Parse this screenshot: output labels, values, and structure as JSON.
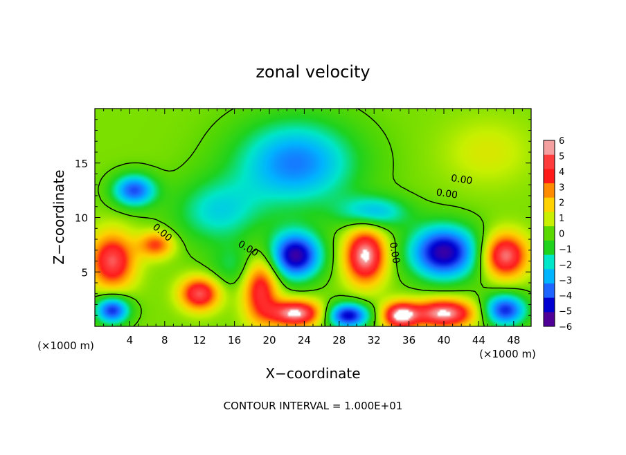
{
  "chart_data": {
    "type": "heatmap",
    "title": "zonal velocity",
    "xlabel": "X−coordinate",
    "ylabel": "Z−coordinate",
    "x_unit_label": "(×1000 m)",
    "y_unit_label": "(×1000 m)",
    "footer": "CONTOUR INTERVAL = 1.000E+01",
    "xlim": [
      0,
      50
    ],
    "ylim": [
      0,
      20
    ],
    "x_ticks": [
      4,
      8,
      12,
      16,
      20,
      24,
      28,
      32,
      36,
      40,
      44,
      48
    ],
    "x_tick_labels": [
      "4",
      "8",
      "12",
      "16",
      "20",
      "24",
      "28",
      "32",
      "36",
      "40",
      "44",
      "48"
    ],
    "y_ticks": [
      5,
      10,
      15
    ],
    "y_tick_labels": [
      "5",
      "10",
      "15"
    ],
    "colorbar": {
      "range": [
        -6,
        6
      ],
      "labels": [
        "6",
        "5",
        "4",
        "3",
        "2",
        "1",
        "0",
        "−1",
        "−2",
        "−3",
        "−4",
        "−5",
        "−6"
      ],
      "colors": [
        "#f4a0a0",
        "#ff3c3c",
        "#ff1a1a",
        "#ff8c00",
        "#ffd200",
        "#c8f000",
        "#5ad800",
        "#1ed21e",
        "#00e6c8",
        "#00b4ff",
        "#1e64ff",
        "#0000d0",
        "#500096"
      ]
    },
    "contour_labels": [
      {
        "text": "0.00",
        "x": 7.5,
        "y": 8.4
      },
      {
        "text": "0.00",
        "x": 17.4,
        "y": 6.9
      },
      {
        "text": "0.00",
        "x": 42.0,
        "y": 13.2
      },
      {
        "text": "0.00",
        "x": 40.3,
        "y": 11.9
      },
      {
        "text": "0.00",
        "x": 34.0,
        "y": 6.7
      }
    ],
    "field_blobs": [
      {
        "x": 23,
        "y": 15,
        "sx": 7,
        "sy": 4,
        "v": -4.0
      },
      {
        "x": 4.5,
        "y": 12.5,
        "sx": 2.5,
        "sy": 1.5,
        "v": -4.5
      },
      {
        "x": 14,
        "y": 10.5,
        "sx": 5,
        "sy": 3,
        "v": -2.5
      },
      {
        "x": 32,
        "y": 10.5,
        "sx": 4,
        "sy": 1.5,
        "v": -3.0
      },
      {
        "x": 23,
        "y": 6.5,
        "sx": 3,
        "sy": 2.2,
        "v": -6.0
      },
      {
        "x": 31,
        "y": 6.5,
        "sx": 2.3,
        "sy": 2.5,
        "v": 6.0
      },
      {
        "x": 40,
        "y": 6.8,
        "sx": 4,
        "sy": 2.5,
        "v": -6.0
      },
      {
        "x": 47,
        "y": 6.5,
        "sx": 2.5,
        "sy": 2,
        "v": 5.5
      },
      {
        "x": 2,
        "y": 6.0,
        "sx": 2.5,
        "sy": 2.5,
        "v": 5.0
      },
      {
        "x": 7,
        "y": 7.5,
        "sx": 2,
        "sy": 1.2,
        "v": 3.5
      },
      {
        "x": 12,
        "y": 3,
        "sx": 2.2,
        "sy": 1.5,
        "v": 5.0
      },
      {
        "x": 19,
        "y": 3.5,
        "sx": 2,
        "sy": 3,
        "v": 4.5
      },
      {
        "x": 23,
        "y": 1.2,
        "sx": 3,
        "sy": 1.2,
        "v": 6.0
      },
      {
        "x": 29,
        "y": 1.0,
        "sx": 2.5,
        "sy": 1.2,
        "v": -5.5
      },
      {
        "x": 35,
        "y": 1.0,
        "sx": 2,
        "sy": 1.2,
        "v": 6.0
      },
      {
        "x": 40,
        "y": 1.2,
        "sx": 3.5,
        "sy": 1.3,
        "v": 6.0
      },
      {
        "x": 47,
        "y": 1.5,
        "sx": 2.5,
        "sy": 1.5,
        "v": -5.0
      },
      {
        "x": 2,
        "y": 1.5,
        "sx": 2,
        "sy": 1.3,
        "v": -5.0
      },
      {
        "x": 45,
        "y": 16,
        "sx": 5,
        "sy": 3,
        "v": 1.0
      },
      {
        "x": 16,
        "y": 5.5,
        "sx": 3,
        "sy": 2,
        "v": -1.5
      }
    ]
  }
}
